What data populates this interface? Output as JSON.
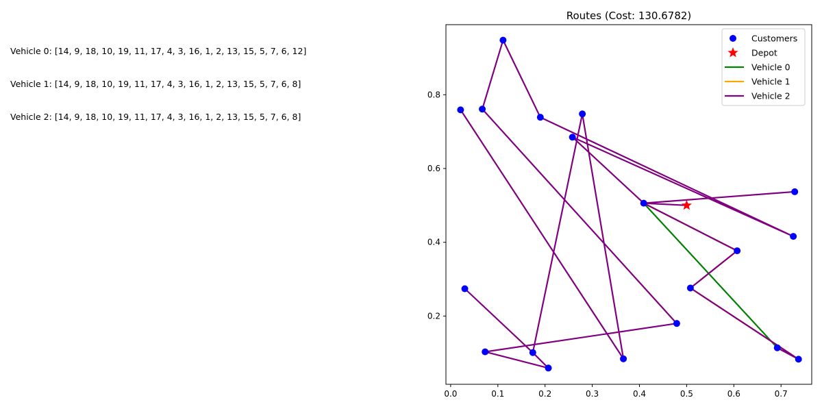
{
  "route_lines": [
    "Vehicle 0: [14, 9, 18, 10, 19, 11, 17, 4, 3, 16, 1, 2, 13, 15, 5, 7, 6, 12]",
    "Vehicle 1: [14, 9, 18, 10, 19, 11, 17, 4, 3, 16, 1, 2, 13, 15, 5, 7, 6, 8]",
    "Vehicle 2: [14, 9, 18, 10, 19, 11, 17, 4, 3, 16, 1, 2, 13, 15, 5, 7, 6, 8]"
  ],
  "chart_data": {
    "type": "scatter",
    "title": "Routes (Cost: 130.6782)",
    "xlabel": "",
    "ylabel": "",
    "xlim": [
      -0.01,
      0.765
    ],
    "ylim": [
      0.015,
      0.99
    ],
    "xticks": [
      0.0,
      0.1,
      0.2,
      0.3,
      0.4,
      0.5,
      0.6,
      0.7
    ],
    "xtick_labels": [
      "0.0",
      "0.1",
      "0.2",
      "0.3",
      "0.4",
      "0.5",
      "0.6",
      "0.7"
    ],
    "yticks": [
      0.2,
      0.4,
      0.6,
      0.8
    ],
    "ytick_labels": [
      "0.2",
      "0.4",
      "0.6",
      "0.8"
    ],
    "grid": false,
    "legend_position": "top-right",
    "legend": [
      "Customers",
      "Depot",
      "Vehicle 0",
      "Vehicle 1",
      "Vehicle 2"
    ],
    "customers": [
      [
        0.021,
        0.759
      ],
      [
        0.067,
        0.761
      ],
      [
        0.111,
        0.948
      ],
      [
        0.19,
        0.739
      ],
      [
        0.258,
        0.685
      ],
      [
        0.279,
        0.748
      ],
      [
        0.03,
        0.274
      ],
      [
        0.073,
        0.103
      ],
      [
        0.174,
        0.101
      ],
      [
        0.207,
        0.059
      ],
      [
        0.366,
        0.084
      ],
      [
        0.409,
        0.506
      ],
      [
        0.479,
        0.18
      ],
      [
        0.508,
        0.276
      ],
      [
        0.607,
        0.377
      ],
      [
        0.692,
        0.114
      ],
      [
        0.737,
        0.083
      ],
      [
        0.726,
        0.416
      ],
      [
        0.729,
        0.537
      ]
    ],
    "depot": [
      0.5,
      0.5
    ],
    "colors": {
      "customers": "#0000ff",
      "depot": "#ff0000",
      "vehicle_0": "#008000",
      "vehicle_1": "#ffa500",
      "vehicle_2": "#800080"
    },
    "series": [
      {
        "name": "Vehicle 0",
        "points": [
          [
            0.409,
            0.506
          ],
          [
            0.692,
            0.114
          ],
          [
            0.737,
            0.083
          ]
        ]
      },
      {
        "name": "Vehicle 1",
        "points": [
          [
            0.409,
            0.506
          ],
          [
            0.607,
            0.377
          ],
          [
            0.508,
            0.276
          ],
          [
            0.737,
            0.083
          ]
        ]
      },
      {
        "name": "Vehicle 2",
        "points": [
          [
            0.5,
            0.5
          ],
          [
            0.409,
            0.506
          ],
          [
            0.729,
            0.537
          ],
          [
            0.409,
            0.506
          ],
          [
            0.607,
            0.377
          ],
          [
            0.508,
            0.276
          ],
          [
            0.737,
            0.083
          ],
          [
            0.692,
            0.114
          ],
          [
            0.737,
            0.083
          ],
          [
            0.508,
            0.276
          ],
          [
            0.607,
            0.377
          ],
          [
            0.409,
            0.506
          ],
          [
            0.258,
            0.685
          ],
          [
            0.726,
            0.416
          ],
          [
            0.19,
            0.739
          ],
          [
            0.111,
            0.948
          ],
          [
            0.067,
            0.761
          ],
          [
            0.479,
            0.18
          ],
          [
            0.073,
            0.103
          ],
          [
            0.207,
            0.059
          ],
          [
            0.174,
            0.101
          ],
          [
            0.03,
            0.274
          ],
          [
            0.174,
            0.101
          ],
          [
            0.279,
            0.748
          ],
          [
            0.366,
            0.084
          ],
          [
            0.021,
            0.759
          ]
        ]
      }
    ]
  }
}
